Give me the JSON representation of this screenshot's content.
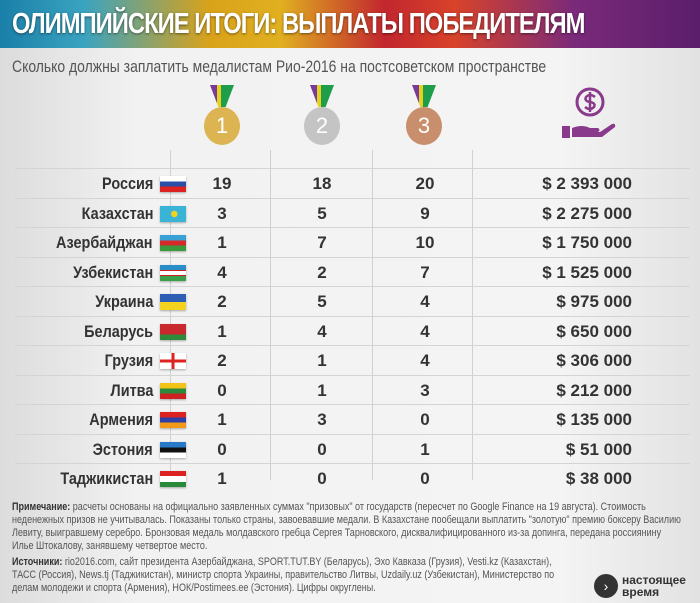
{
  "header": {
    "title": "ОЛИМПИЙСКИЕ ИТОГИ: ВЫПЛАТЫ ПОБЕДИТЕЛЯМ",
    "subtitle": "Сколько должны заплатить медалистам Рио-2016 на постсоветском пространстве"
  },
  "columns": {
    "gold": "1",
    "silver": "2",
    "bronze": "3",
    "payout_icon": "money-in-hand-icon"
  },
  "colors": {
    "gold": "#dcb552",
    "silver": "#c4c4c4",
    "bronze": "#c98f6c",
    "icon": "#8a3a8a"
  },
  "rows": [
    {
      "country": "Россия",
      "gold": "19",
      "silver": "18",
      "bronze": "20",
      "payout": "$ 2 393 000",
      "flag": "linear-gradient(#fff 0 33%,#2a4fa8 33% 66%,#d22 66%)"
    },
    {
      "country": "Казахстан",
      "gold": "3",
      "silver": "5",
      "bronze": "9",
      "payout": "$ 2 275 000",
      "flag": "radial-gradient(circle at 55% 50%,#f2d21e 0 3px,#39b3d6 3.5px)"
    },
    {
      "country": "Азербайджан",
      "gold": "1",
      "silver": "7",
      "bronze": "10",
      "payout": "$ 1 750 000",
      "flag": "linear-gradient(#3aa1d6 0 33%,#d62a2a 33% 66%,#3a9a3a 66%)"
    },
    {
      "country": "Узбекистан",
      "gold": "4",
      "silver": "2",
      "bronze": "7",
      "payout": "$ 1 525 000",
      "flag": "linear-gradient(#2a8ec8 0 32%,#c22 32% 36%,#fff 36% 64%,#c22 64% 68%,#3aa04a 68%)"
    },
    {
      "country": "Украина",
      "gold": "2",
      "silver": "5",
      "bronze": "4",
      "payout": "$ 975 000",
      "flag": "linear-gradient(#2e5fb5 0 50%,#f4d21e 50%)"
    },
    {
      "country": "Беларусь",
      "gold": "1",
      "silver": "4",
      "bronze": "4",
      "payout": "$ 650 000",
      "flag": "linear-gradient(#c8282e 0 66%,#2e8a3a 66%)"
    },
    {
      "country": "Грузия",
      "gold": "2",
      "silver": "1",
      "bronze": "4",
      "payout": "$ 306 000",
      "flag": "linear-gradient(90deg,transparent 44%,#d22 44% 56%,transparent 56%),linear-gradient(transparent 40%,#d22 40% 60%,#fff 60%),#fff"
    },
    {
      "country": "Литва",
      "gold": "0",
      "silver": "1",
      "bronze": "3",
      "payout": "$ 212 000",
      "flag": "linear-gradient(#f2c318 0 33%,#2a8a3a 33% 66%,#c22 66%)"
    },
    {
      "country": "Армения",
      "gold": "1",
      "silver": "3",
      "bronze": "0",
      "payout": "$ 135 000",
      "flag": "linear-gradient(#d22 0 33%,#2a3fa8 33% 66%,#f29a18 66%)"
    },
    {
      "country": "Эстония",
      "gold": "0",
      "silver": "0",
      "bronze": "1",
      "payout": "$ 51 000",
      "flag": "linear-gradient(#2a7ac8 0 33%,#111 33% 66%,#fff 66%)"
    },
    {
      "country": "Таджикистан",
      "gold": "1",
      "silver": "0",
      "bronze": "0",
      "payout": "$ 38 000",
      "flag": "linear-gradient(#d22 0 30%,#fff 30% 70%,#2a8a3a 70%)"
    }
  ],
  "notes": {
    "note_label": "Примечание:",
    "note_text": "расчеты основаны на официально заявленных суммах \"призовых\" от государств (пересчет по Google Finance на 19 августа). Стоимость неденежных призов не учитывалась. Показаны только страны, завоевавшие медали. В Казахстане пообещали выплатить \"золотую\" премию боксеру Василию Левиту, выигравшему серебро. Бронзовая медаль молдавского гребца Сергея Тарновского, дисквалифицированного из-за допинга, передана россиянину Илье Штокалову, занявшему четвертое место.",
    "sources_label": "Источники:",
    "sources_text": "rio2016.com, сайт президента Азербайджана, SPORT.TUT.BY (Беларусь), Эхо Кавказа (Грузия), Vesti.kz (Казахстан), ТАСС (Россия), News.tj (Таджикистан), министр спорта Украины, правительство Литвы, Uzdaily.uz (Узбекистан), Министерство по делам молодежи и спорта (Армения), НОК/Postimees.ee (Эстония). Цифры округлены."
  },
  "logo": {
    "line1": "настоящее",
    "line2": "время"
  }
}
